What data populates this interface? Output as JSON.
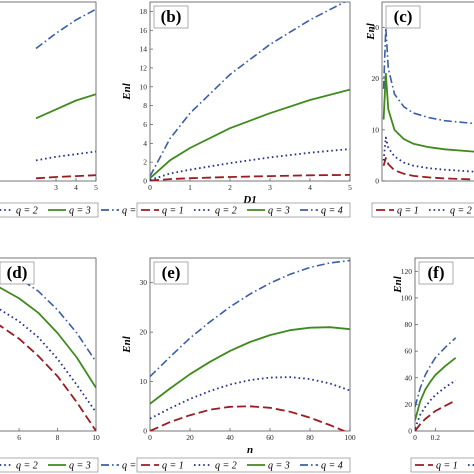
{
  "colors": {
    "q1": "#9b1c22",
    "q2": "#1f2f8f",
    "q3": "#3f8a1d",
    "q4": "#3a5fa8"
  },
  "legend": [
    "q = 1",
    "q = 2",
    "q = 3",
    "q = 4"
  ],
  "chart_data": [
    {
      "panel": "a",
      "type": "line",
      "label": "",
      "xlabel": "",
      "ylabel": "",
      "xlim": [
        0,
        5
      ],
      "ylim": [
        0,
        20
      ],
      "xticks": [
        "3",
        "4",
        "5"
      ],
      "yticks": [],
      "legend_visible": [
        "q = 3",
        "q = 4"
      ],
      "series": [
        {
          "name": "q = 1",
          "x": [
            2,
            3,
            4,
            5
          ],
          "y": [
            0.3,
            0.45,
            0.55,
            0.65
          ]
        },
        {
          "name": "q = 2",
          "x": [
            2,
            3,
            4,
            5
          ],
          "y": [
            2.3,
            2.7,
            3.0,
            3.3
          ]
        },
        {
          "name": "q = 3",
          "x": [
            2,
            3,
            4,
            5
          ],
          "y": [
            7.0,
            8.0,
            9.0,
            9.7
          ]
        },
        {
          "name": "q = 4",
          "x": [
            2,
            3,
            4,
            5
          ],
          "y": [
            14.8,
            16.5,
            18.0,
            19.2
          ]
        }
      ]
    },
    {
      "panel": "b",
      "type": "line",
      "label": "(b)",
      "xlabel": "D1",
      "ylabel": "Enl",
      "xlim": [
        0,
        5
      ],
      "ylim": [
        0,
        19
      ],
      "xticks": [
        "0",
        "1",
        "2",
        "3",
        "4",
        "5"
      ],
      "yticks": [
        "0",
        "2",
        "4",
        "6",
        "8",
        "10",
        "12",
        "14",
        "16",
        "18"
      ],
      "legend_visible": [
        "q = 1",
        "q = 2",
        "q = 3",
        "q = 4"
      ],
      "series": [
        {
          "name": "q = 1",
          "x": [
            0,
            0.5,
            1,
            2,
            3,
            4,
            5
          ],
          "y": [
            0.05,
            0.2,
            0.3,
            0.42,
            0.52,
            0.6,
            0.65
          ]
        },
        {
          "name": "q = 2",
          "x": [
            0,
            0.5,
            1,
            2,
            3,
            4,
            5
          ],
          "y": [
            0.1,
            0.8,
            1.2,
            1.9,
            2.5,
            3.0,
            3.4
          ]
        },
        {
          "name": "q = 3",
          "x": [
            0,
            0.5,
            1,
            2,
            3,
            4,
            5
          ],
          "y": [
            0.3,
            2.2,
            3.5,
            5.6,
            7.2,
            8.6,
            9.7
          ]
        },
        {
          "name": "q = 4",
          "x": [
            0,
            0.5,
            1,
            2,
            3,
            4,
            5
          ],
          "y": [
            0.5,
            4.5,
            7.2,
            11.3,
            14.5,
            17.1,
            19.3
          ]
        }
      ]
    },
    {
      "panel": "c",
      "type": "line",
      "label": "(c)",
      "xlabel": "",
      "ylabel": "Enl",
      "xlim": [
        0,
        3
      ],
      "ylim": [
        0,
        35
      ],
      "xticks": [],
      "yticks": [
        "0",
        "10",
        "20",
        "30"
      ],
      "legend_visible": [
        "q = 1"
      ],
      "series": [
        {
          "name": "q = 1",
          "x": [
            0.05,
            0.12,
            0.2,
            0.4,
            0.7,
            1.0,
            1.5,
            2.0,
            3.0
          ],
          "y": [
            3.0,
            4.5,
            3.3,
            2.1,
            1.4,
            1.0,
            0.7,
            0.5,
            0.3
          ]
        },
        {
          "name": "q = 2",
          "x": [
            0.05,
            0.12,
            0.2,
            0.4,
            0.7,
            1.0,
            1.5,
            2.0,
            3.0
          ],
          "y": [
            4.0,
            8.5,
            6.5,
            4.8,
            3.6,
            3.0,
            2.5,
            2.2,
            1.8
          ]
        },
        {
          "name": "q = 3",
          "x": [
            0.05,
            0.12,
            0.2,
            0.4,
            0.7,
            1.0,
            1.5,
            2.0,
            3.0
          ],
          "y": [
            12.0,
            21.0,
            14.0,
            10.0,
            8.2,
            7.3,
            6.6,
            6.2,
            5.7
          ]
        },
        {
          "name": "q = 4",
          "x": [
            0.05,
            0.12,
            0.2,
            0.4,
            0.7,
            1.0,
            1.5,
            2.0,
            3.0
          ],
          "y": [
            18.0,
            30.0,
            22.0,
            17.0,
            14.5,
            13.3,
            12.4,
            11.8,
            11.2
          ]
        }
      ]
    },
    {
      "panel": "d",
      "type": "line",
      "label": "(d)",
      "xlabel": "",
      "ylabel": "",
      "xlim": [
        4.8,
        10
      ],
      "ylim": [
        0,
        12
      ],
      "xticks": [
        "6",
        "8",
        "10"
      ],
      "yticks": [],
      "legend_visible": [
        "q = 3",
        "q = 4"
      ],
      "series": [
        {
          "name": "q = 1",
          "x": [
            4.8,
            6,
            7,
            8,
            9,
            10
          ],
          "y": [
            7.5,
            6.4,
            5.2,
            3.8,
            2.0,
            0.0
          ]
        },
        {
          "name": "q = 2",
          "x": [
            4.8,
            6,
            7,
            8,
            9,
            10
          ],
          "y": [
            8.6,
            7.6,
            6.5,
            5.0,
            3.2,
            1.3
          ]
        },
        {
          "name": "q = 3",
          "x": [
            4.8,
            6,
            7,
            8,
            9,
            10
          ],
          "y": [
            10.1,
            9.2,
            8.2,
            6.8,
            5.1,
            3.0
          ]
        },
        {
          "name": "q = 4",
          "x": [
            4.8,
            6,
            7,
            8,
            9,
            10
          ],
          "y": [
            11.4,
            10.6,
            9.7,
            8.4,
            6.8,
            4.8
          ]
        }
      ]
    },
    {
      "panel": "e",
      "type": "line",
      "label": "(e)",
      "xlabel": "n",
      "ylabel": "Enl",
      "xlim": [
        0,
        100
      ],
      "ylim": [
        0,
        35
      ],
      "xticks": [
        "0",
        "20",
        "40",
        "60",
        "80",
        "100"
      ],
      "yticks": [
        "0",
        "10",
        "20",
        "30"
      ],
      "legend_visible": [
        "q = 1",
        "q = 2",
        "q = 3",
        "q = 4"
      ],
      "series": [
        {
          "name": "q = 1",
          "x": [
            0,
            10,
            20,
            30,
            40,
            50,
            60,
            70,
            80,
            90,
            100
          ],
          "y": [
            0.0,
            1.8,
            3.2,
            4.3,
            4.9,
            5.0,
            4.7,
            3.9,
            2.7,
            1.2,
            -0.5
          ]
        },
        {
          "name": "q = 2",
          "x": [
            0,
            10,
            20,
            30,
            40,
            50,
            60,
            70,
            80,
            90,
            100
          ],
          "y": [
            2.5,
            4.6,
            6.5,
            8.1,
            9.4,
            10.3,
            10.8,
            10.9,
            10.5,
            9.6,
            8.2
          ]
        },
        {
          "name": "q = 3",
          "x": [
            0,
            10,
            20,
            30,
            40,
            50,
            60,
            70,
            80,
            90,
            100
          ],
          "y": [
            5.5,
            8.6,
            11.5,
            14.0,
            16.2,
            18.0,
            19.4,
            20.4,
            20.9,
            21.0,
            20.6
          ]
        },
        {
          "name": "q = 4",
          "x": [
            0,
            10,
            20,
            30,
            40,
            50,
            60,
            70,
            80,
            90,
            100
          ],
          "y": [
            11.0,
            15.0,
            18.8,
            22.1,
            25.1,
            27.7,
            29.9,
            31.7,
            33.1,
            34.0,
            34.5
          ]
        }
      ]
    },
    {
      "panel": "f",
      "type": "line",
      "label": "(f)",
      "xlabel": "",
      "ylabel": "Enl",
      "xlim": [
        0,
        0.6
      ],
      "ylim": [
        0,
        130
      ],
      "xticks": [
        "0",
        "0.2"
      ],
      "yticks": [
        "0",
        "20",
        "40",
        "60",
        "80",
        "100",
        "120"
      ],
      "legend_visible": [
        "q = 1",
        "q = 2"
      ],
      "series": [
        {
          "name": "q = 1",
          "x": [
            0,
            0.05,
            0.1,
            0.15,
            0.2,
            0.3,
            0.4
          ],
          "y": [
            0,
            5,
            9,
            12,
            15,
            19,
            23
          ]
        },
        {
          "name": "q = 2",
          "x": [
            0,
            0.05,
            0.1,
            0.15,
            0.2,
            0.3,
            0.4
          ],
          "y": [
            2,
            12,
            18,
            23,
            27,
            33,
            38
          ]
        },
        {
          "name": "q = 3",
          "x": [
            0,
            0.05,
            0.1,
            0.15,
            0.2,
            0.3,
            0.4
          ],
          "y": [
            8,
            22,
            31,
            37,
            42,
            49,
            55
          ]
        },
        {
          "name": "q = 4",
          "x": [
            0,
            0.05,
            0.1,
            0.15,
            0.2,
            0.3,
            0.4
          ],
          "y": [
            18,
            32,
            42,
            49,
            55,
            63,
            70
          ]
        }
      ]
    }
  ]
}
